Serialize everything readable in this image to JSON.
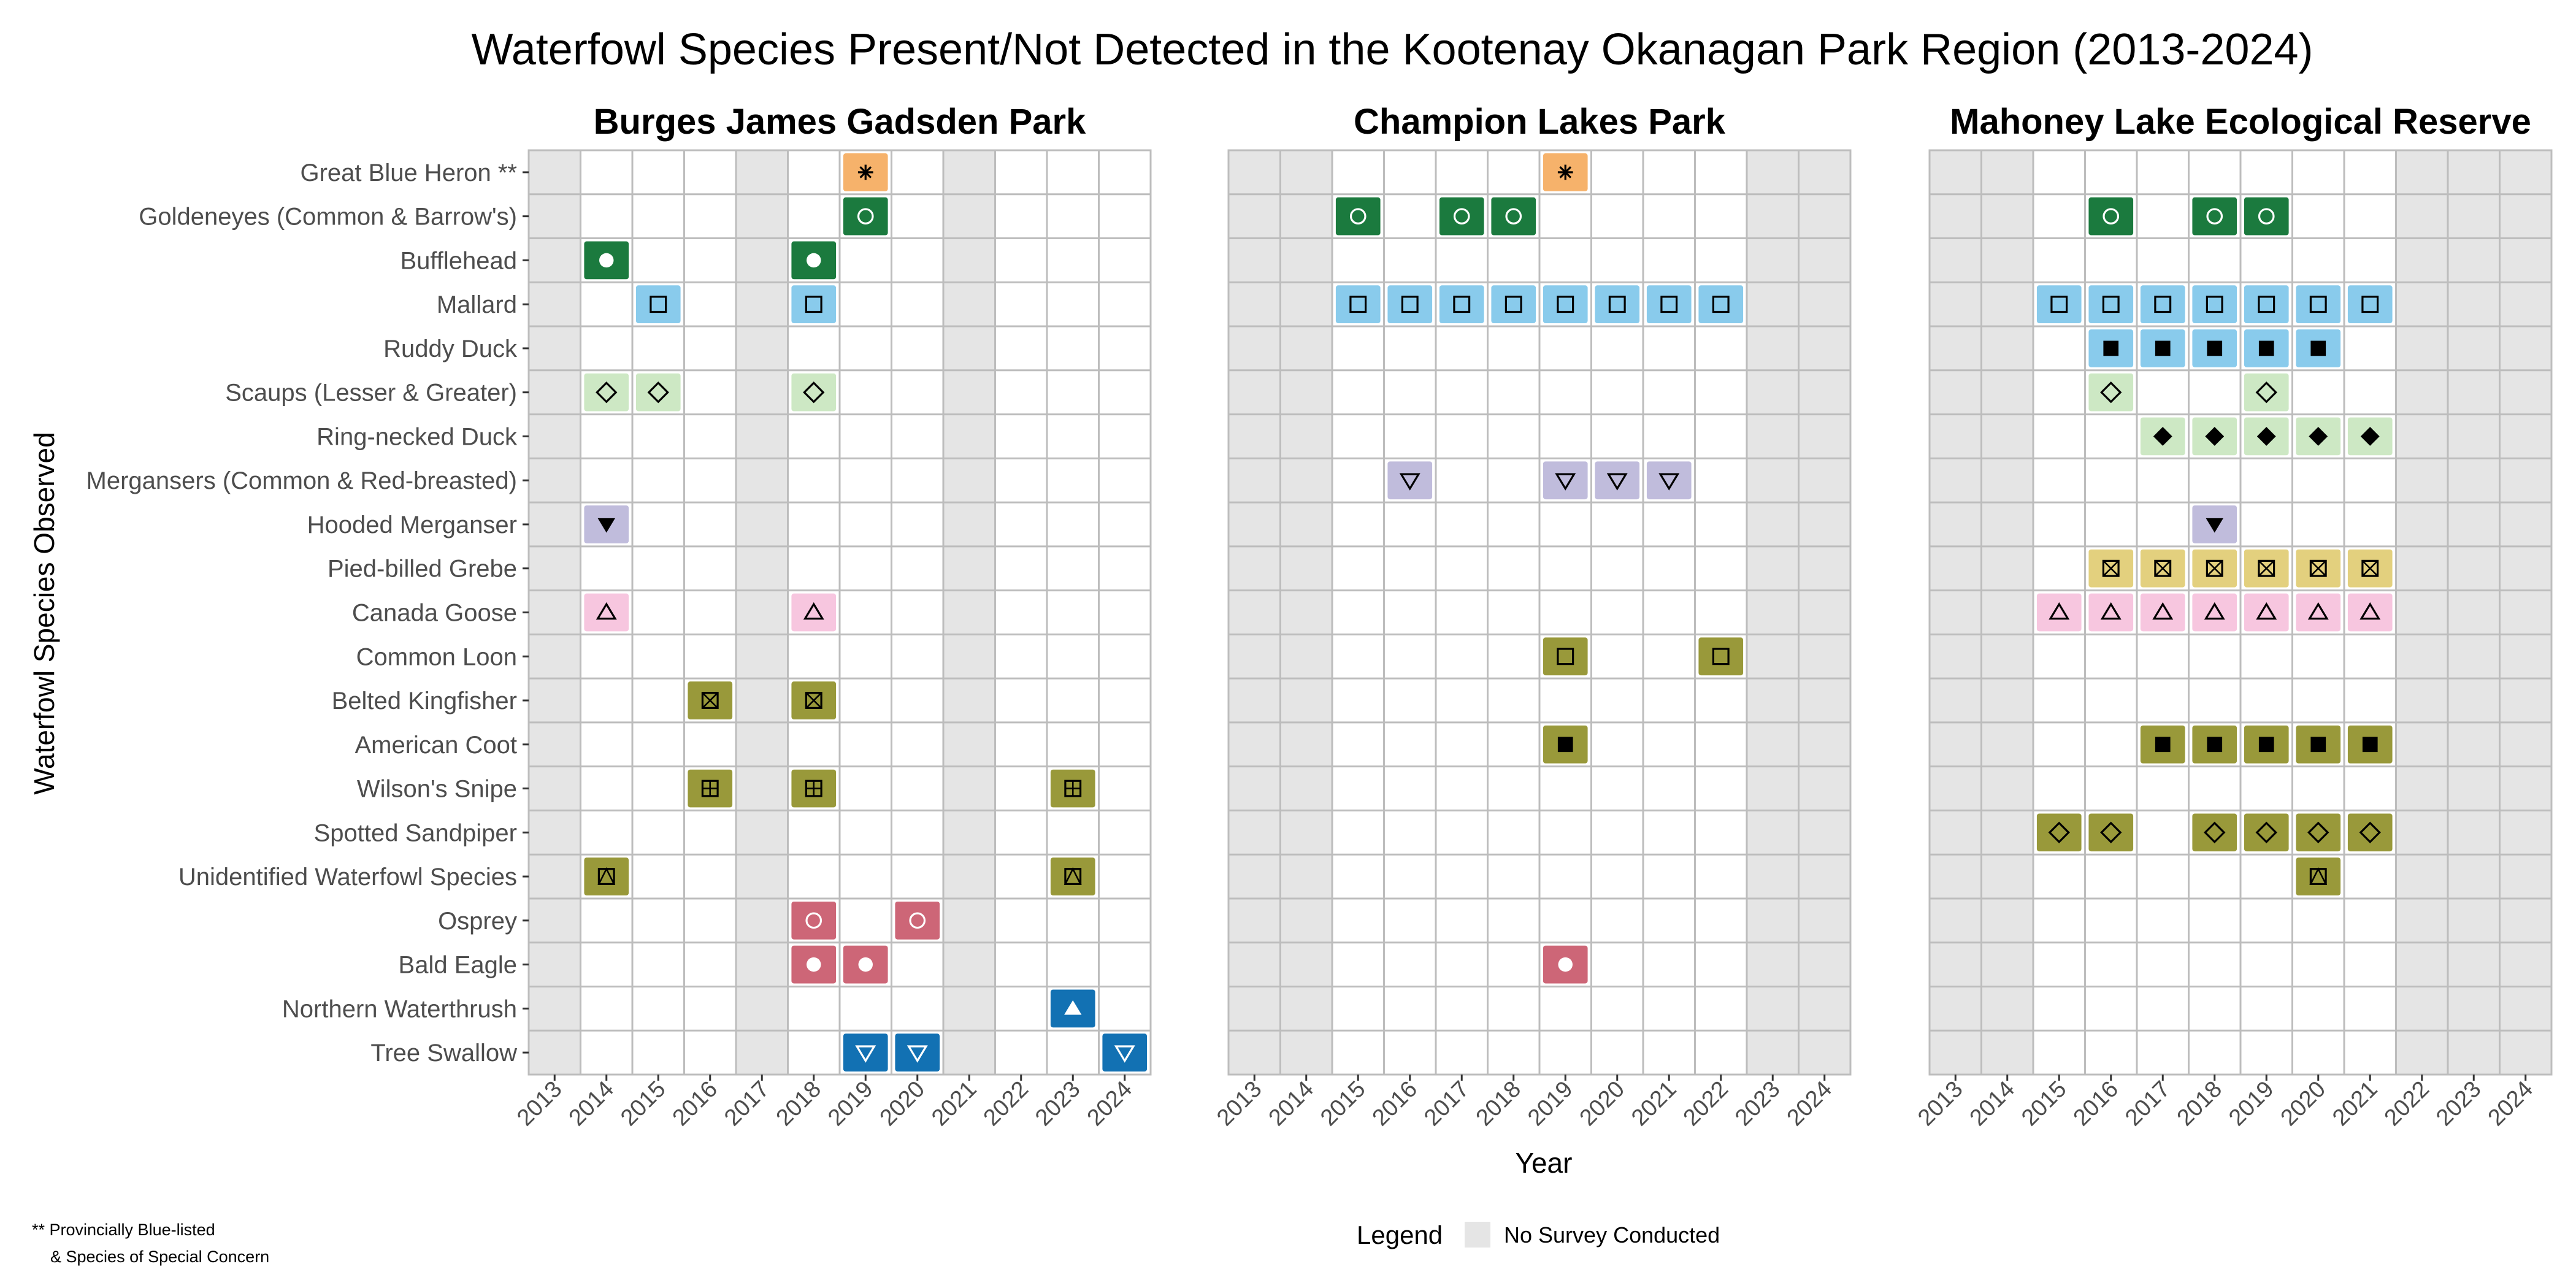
{
  "chart_data": {
    "type": "heatmap",
    "title": "Waterfowl Species Present/Not Detected in the Kootenay Okanagan Park Region (2013-2024)",
    "xlabel": "Year",
    "ylabel": "Waterfowl Species Observed",
    "years": [
      2013,
      2014,
      2015,
      2016,
      2017,
      2018,
      2019,
      2020,
      2021,
      2022,
      2023,
      2024
    ],
    "species": [
      "Great Blue Heron **",
      "Goldeneyes (Common & Barrow's)",
      "Bufflehead",
      "Mallard",
      "Ruddy Duck",
      "Scaups (Lesser & Greater)",
      "Ring-necked Duck",
      "Mergansers (Common & Red-breasted)",
      "Hooded Merganser",
      "Pied-billed Grebe",
      "Canada Goose",
      "Common Loon",
      "Belted Kingfisher",
      "American Coot",
      "Wilson's Snipe",
      "Spotted Sandpiper",
      "Unidentified Waterfowl Species",
      "Osprey",
      "Bald Eagle",
      "Northern Waterthrush",
      "Tree Swallow"
    ],
    "species_style": {
      "Great Blue Heron **": {
        "color": "#f6b26b",
        "shape": "asterisk"
      },
      "Goldeneyes (Common & Barrow's)": {
        "color": "#1b7a3e",
        "shape": "circle-open-white"
      },
      "Bufflehead": {
        "color": "#1b7a3e",
        "shape": "circle-filled-white"
      },
      "Mallard": {
        "color": "#89cbec",
        "shape": "square-open"
      },
      "Ruddy Duck": {
        "color": "#89cbec",
        "shape": "square-filled"
      },
      "Scaups (Lesser & Greater)": {
        "color": "#cde8c4",
        "shape": "diamond-open"
      },
      "Ring-necked Duck": {
        "color": "#cde8c4",
        "shape": "diamond-filled"
      },
      "Mergansers (Common & Red-breasted)": {
        "color": "#c0bcdc",
        "shape": "triangle-down-open"
      },
      "Hooded Merganser": {
        "color": "#c0bcdc",
        "shape": "triangle-down-filled"
      },
      "Pied-billed Grebe": {
        "color": "#e3d07e",
        "shape": "square-x"
      },
      "Canada Goose": {
        "color": "#f7c6df",
        "shape": "triangle-open"
      },
      "Common Loon": {
        "color": "#99993a",
        "shape": "square-open"
      },
      "Belted Kingfisher": {
        "color": "#99993a",
        "shape": "square-x"
      },
      "American Coot": {
        "color": "#99993a",
        "shape": "square-filled"
      },
      "Wilson's Snipe": {
        "color": "#99993a",
        "shape": "square-plus"
      },
      "Spotted Sandpiper": {
        "color": "#99993a",
        "shape": "diamond-open"
      },
      "Unidentified Waterfowl Species": {
        "color": "#99993a",
        "shape": "square-triangle"
      },
      "Osprey": {
        "color": "#cd6677",
        "shape": "circle-open-white"
      },
      "Bald Eagle": {
        "color": "#cd6677",
        "shape": "circle-filled-white"
      },
      "Northern Waterthrush": {
        "color": "#1271b3",
        "shape": "triangle-filled-white"
      },
      "Tree Swallow": {
        "color": "#1271b3",
        "shape": "triangle-down-open-white"
      }
    },
    "legend_position": "bottom",
    "grid": true,
    "facets": [
      {
        "name": "Burges James Gadsden Park",
        "no_survey": [
          2013,
          2017,
          2021
        ],
        "present": {
          "Great Blue Heron **": [
            2019
          ],
          "Goldeneyes (Common & Barrow's)": [
            2019
          ],
          "Bufflehead": [
            2014,
            2018
          ],
          "Mallard": [
            2015,
            2018
          ],
          "Scaups (Lesser & Greater)": [
            2014,
            2015,
            2018
          ],
          "Hooded Merganser": [
            2014
          ],
          "Canada Goose": [
            2014,
            2018
          ],
          "Belted Kingfisher": [
            2016,
            2018
          ],
          "Wilson's Snipe": [
            2016,
            2018,
            2023
          ],
          "Unidentified Waterfowl Species": [
            2014,
            2023
          ],
          "Osprey": [
            2018,
            2020
          ],
          "Bald Eagle": [
            2018,
            2019
          ],
          "Northern Waterthrush": [
            2023
          ],
          "Tree Swallow": [
            2019,
            2020,
            2024
          ]
        }
      },
      {
        "name": "Champion Lakes Park",
        "no_survey": [
          2013,
          2014,
          2023,
          2024
        ],
        "present": {
          "Great Blue Heron **": [
            2019
          ],
          "Goldeneyes (Common & Barrow's)": [
            2015,
            2017,
            2018
          ],
          "Mallard": [
            2015,
            2016,
            2017,
            2018,
            2019,
            2020,
            2021,
            2022
          ],
          "Mergansers (Common & Red-breasted)": [
            2016,
            2019,
            2020,
            2021
          ],
          "Common Loon": [
            2019,
            2022
          ],
          "American Coot": [
            2019
          ],
          "Bald Eagle": [
            2019
          ]
        }
      },
      {
        "name": "Mahoney Lake Ecological Reserve",
        "no_survey": [
          2013,
          2014,
          2022,
          2023,
          2024
        ],
        "present": {
          "Goldeneyes (Common & Barrow's)": [
            2016,
            2018,
            2019
          ],
          "Mallard": [
            2015,
            2016,
            2017,
            2018,
            2019,
            2020,
            2021
          ],
          "Ruddy Duck": [
            2016,
            2017,
            2018,
            2019,
            2020
          ],
          "Scaups (Lesser & Greater)": [
            2016,
            2019
          ],
          "Ring-necked Duck": [
            2017,
            2018,
            2019,
            2020,
            2021
          ],
          "Hooded Merganser": [
            2018
          ],
          "Pied-billed Grebe": [
            2016,
            2017,
            2018,
            2019,
            2020,
            2021
          ],
          "Canada Goose": [
            2015,
            2016,
            2017,
            2018,
            2019,
            2020,
            2021
          ],
          "American Coot": [
            2017,
            2018,
            2019,
            2020,
            2021
          ],
          "Spotted Sandpiper": [
            2015,
            2016,
            2018,
            2019,
            2020,
            2021
          ],
          "Unidentified Waterfowl Species": [
            2020
          ]
        }
      }
    ],
    "legend": {
      "title": "Legend",
      "items": [
        {
          "label": "No Survey Conducted",
          "color": "#e5e5e5"
        }
      ]
    },
    "footnote": [
      "** Provincially Blue-listed",
      "& Species of Special Concern"
    ]
  }
}
